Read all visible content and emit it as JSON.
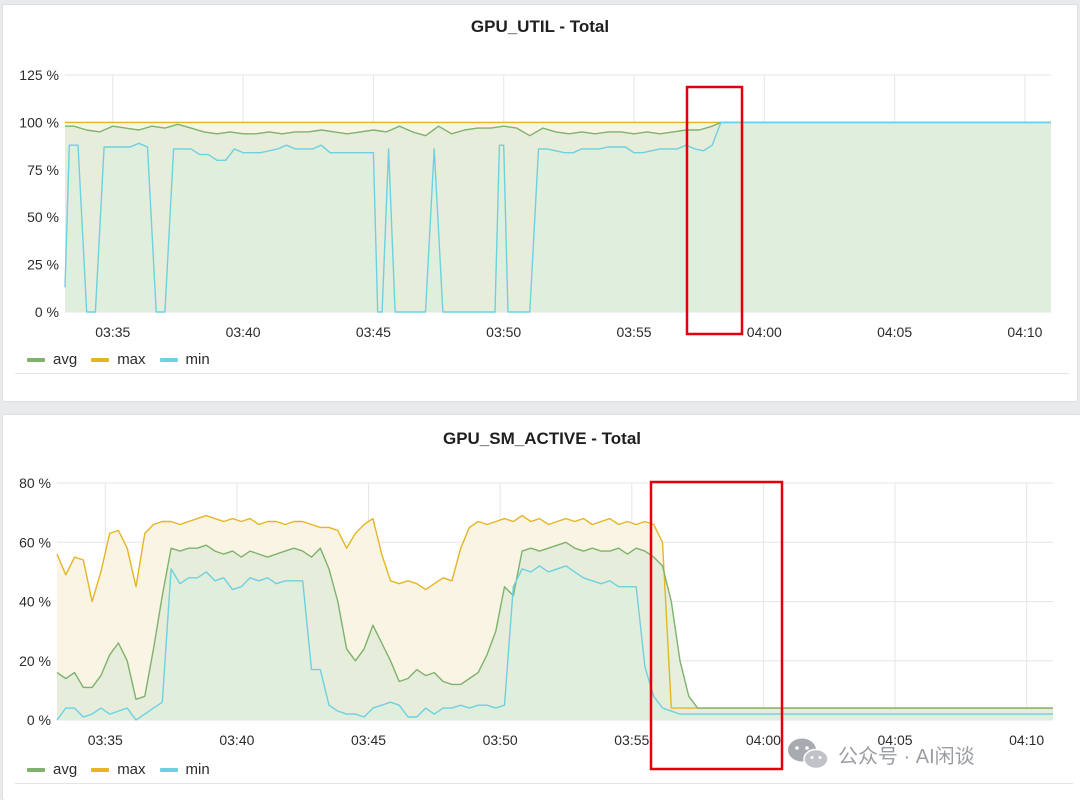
{
  "colors": {
    "avg": "#7eb26d",
    "max": "#e5b525",
    "min": "#6ed0e0",
    "highlight": "#e3000b",
    "grid": "#e6e6e6"
  },
  "panels": [
    {
      "title": "GPU_UTIL - Total",
      "legend": [
        "avg",
        "max",
        "min"
      ]
    },
    {
      "title": "GPU_SM_ACTIVE - Total",
      "legend": [
        "avg",
        "max",
        "min"
      ]
    }
  ],
  "watermark": {
    "text": "公众号 · AI闲谈",
    "icon": "wechat-icon"
  },
  "chart_data": [
    {
      "type": "area",
      "title": "GPU_UTIL - Total",
      "x_unit": "time (hh:mm)",
      "xlim": [
        "03:33:10",
        "04:11:00"
      ],
      "x_ticks": [
        "03:35",
        "03:40",
        "03:45",
        "03:50",
        "03:55",
        "04:00",
        "04:05",
        "04:10"
      ],
      "y_ticks": [
        "0 %",
        "25 %",
        "50 %",
        "75 %",
        "100 %",
        "125 %"
      ],
      "ylim": [
        0,
        125
      ],
      "grid": true,
      "legend_position": "bottom-left",
      "series": [
        {
          "name": "avg",
          "color": "#7eb26d",
          "x": [
            "03:33:10",
            "03:33:30",
            "03:34:00",
            "03:34:30",
            "03:35:00",
            "03:35:30",
            "03:36:00",
            "03:36:30",
            "03:37:00",
            "03:37:30",
            "03:38:00",
            "03:38:30",
            "03:39:00",
            "03:39:30",
            "03:40:00",
            "03:40:30",
            "03:41:00",
            "03:41:30",
            "03:42:00",
            "03:42:30",
            "03:43:00",
            "03:43:30",
            "03:44:00",
            "03:44:30",
            "03:45:00",
            "03:45:30",
            "03:46:00",
            "03:46:30",
            "03:47:00",
            "03:47:30",
            "03:48:00",
            "03:48:30",
            "03:49:00",
            "03:49:30",
            "03:50:00",
            "03:50:30",
            "03:51:00",
            "03:51:30",
            "03:52:00",
            "03:52:30",
            "03:53:00",
            "03:53:30",
            "03:54:00",
            "03:54:30",
            "03:55:00",
            "03:55:30",
            "03:56:00",
            "03:56:30",
            "03:57:00",
            "03:57:30",
            "03:58:00",
            "03:58:20",
            "04:11:00"
          ],
          "y": [
            98,
            98,
            96,
            95,
            98,
            97,
            96,
            98,
            97,
            99,
            97,
            95,
            94,
            95,
            94,
            94,
            95,
            94,
            95,
            95,
            96,
            95,
            94,
            95,
            96,
            95,
            98,
            95,
            93,
            98,
            94,
            96,
            97,
            97,
            98,
            97,
            93,
            97,
            95,
            94,
            95,
            94,
            95,
            95,
            94,
            95,
            94,
            95,
            96,
            96,
            98,
            100,
            100
          ]
        },
        {
          "name": "max",
          "color": "#e5b525",
          "x": [
            "03:33:10",
            "03:58:20",
            "04:11:00"
          ],
          "y": [
            100,
            100,
            100
          ]
        },
        {
          "name": "min",
          "color": "#6ed0e0",
          "x": [
            "03:33:10",
            "03:33:20",
            "03:33:40",
            "03:34:00",
            "03:34:20",
            "03:34:40",
            "03:35:00",
            "03:35:20",
            "03:35:40",
            "03:36:00",
            "03:36:20",
            "03:36:40",
            "03:37:00",
            "03:37:20",
            "03:37:40",
            "03:38:00",
            "03:38:20",
            "03:38:40",
            "03:39:00",
            "03:39:20",
            "03:39:40",
            "03:40:00",
            "03:40:20",
            "03:40:40",
            "03:41:00",
            "03:41:20",
            "03:41:40",
            "03:42:00",
            "03:42:20",
            "03:42:40",
            "03:43:00",
            "03:43:20",
            "03:43:40",
            "03:44:00",
            "03:44:20",
            "03:44:40",
            "03:45:00",
            "03:45:10",
            "03:45:20",
            "03:45:35",
            "03:45:50",
            "03:46:05",
            "03:46:30",
            "03:47:00",
            "03:47:20",
            "03:47:40",
            "03:48:00",
            "03:48:20",
            "03:48:40",
            "03:49:00",
            "03:49:20",
            "03:49:40",
            "03:49:50",
            "03:50:00",
            "03:50:10",
            "03:50:20",
            "03:50:40",
            "03:51:00",
            "03:51:20",
            "03:51:40",
            "03:52:00",
            "03:52:20",
            "03:52:40",
            "03:53:00",
            "03:53:20",
            "03:53:40",
            "03:54:00",
            "03:54:20",
            "03:54:40",
            "03:55:00",
            "03:55:20",
            "03:55:40",
            "03:56:00",
            "03:56:20",
            "03:56:40",
            "03:57:00",
            "03:57:20",
            "03:57:40",
            "03:58:00",
            "03:58:20",
            "04:11:00"
          ],
          "y": [
            13,
            88,
            88,
            0,
            0,
            87,
            87,
            87,
            87,
            89,
            87,
            0,
            0,
            86,
            86,
            86,
            83,
            83,
            80,
            80,
            86,
            84,
            84,
            84,
            85,
            86,
            88,
            86,
            86,
            86,
            88,
            84,
            84,
            84,
            84,
            84,
            84,
            0,
            0,
            86,
            0,
            0,
            0,
            0,
            86,
            0,
            0,
            0,
            0,
            0,
            0,
            0,
            88,
            88,
            0,
            0,
            0,
            0,
            86,
            86,
            85,
            84,
            84,
            86,
            86,
            86,
            87,
            87,
            87,
            84,
            84,
            85,
            86,
            86,
            86,
            88,
            86,
            85,
            88,
            100,
            100
          ]
        }
      ]
    },
    {
      "type": "area",
      "title": "GPU_SM_ACTIVE - Total",
      "x_unit": "time (hh:mm)",
      "xlim": [
        "03:33:10",
        "04:11:00"
      ],
      "x_ticks": [
        "03:35",
        "03:40",
        "03:45",
        "03:50",
        "03:55",
        "04:00",
        "04:05",
        "04:10"
      ],
      "y_ticks": [
        "0 %",
        "20 %",
        "40 %",
        "60 %",
        "80 %"
      ],
      "ylim": [
        0,
        80
      ],
      "grid": true,
      "legend_position": "bottom-left",
      "series": [
        {
          "name": "avg",
          "color": "#7eb26d",
          "x": [
            "03:33:10",
            "03:33:30",
            "03:33:50",
            "03:34:10",
            "03:34:30",
            "03:34:50",
            "03:35:10",
            "03:35:30",
            "03:35:50",
            "03:36:10",
            "03:36:30",
            "03:36:50",
            "03:37:10",
            "03:37:30",
            "03:37:50",
            "03:38:10",
            "03:38:30",
            "03:38:50",
            "03:39:10",
            "03:39:30",
            "03:39:50",
            "03:40:10",
            "03:40:30",
            "03:40:50",
            "03:41:10",
            "03:41:30",
            "03:41:50",
            "03:42:10",
            "03:42:30",
            "03:42:50",
            "03:43:10",
            "03:43:30",
            "03:43:50",
            "03:44:10",
            "03:44:30",
            "03:44:50",
            "03:45:10",
            "03:45:30",
            "03:45:50",
            "03:46:10",
            "03:46:30",
            "03:46:50",
            "03:47:10",
            "03:47:30",
            "03:47:50",
            "03:48:10",
            "03:48:30",
            "03:48:50",
            "03:49:10",
            "03:49:30",
            "03:49:50",
            "03:50:10",
            "03:50:30",
            "03:50:50",
            "03:51:10",
            "03:51:30",
            "03:51:50",
            "03:52:10",
            "03:52:30",
            "03:52:50",
            "03:53:10",
            "03:53:30",
            "03:53:50",
            "03:54:10",
            "03:54:30",
            "03:54:50",
            "03:55:10",
            "03:55:30",
            "03:55:50",
            "03:56:10",
            "03:56:30",
            "03:56:50",
            "03:57:10",
            "03:57:30",
            "03:57:50",
            "03:58:10",
            "03:58:30",
            "03:58:50",
            "03:59:30",
            "04:00:30",
            "04:01:00",
            "04:01:30",
            "04:11:00"
          ],
          "y": [
            16,
            14,
            16,
            11,
            11,
            15,
            22,
            26,
            20,
            7,
            8,
            24,
            42,
            58,
            57,
            58,
            58,
            59,
            57,
            56,
            57,
            55,
            57,
            56,
            55,
            56,
            57,
            58,
            57,
            55,
            58,
            51,
            40,
            24,
            20,
            24,
            32,
            26,
            20,
            13,
            14,
            17,
            15,
            16,
            13,
            12,
            12,
            14,
            16,
            22,
            30,
            45,
            42,
            57,
            58,
            57,
            58,
            59,
            60,
            58,
            57,
            58,
            57,
            57,
            58,
            56,
            58,
            57,
            55,
            52,
            40,
            20,
            8,
            4,
            4,
            4,
            4,
            4,
            4,
            4,
            4,
            4,
            4
          ]
        },
        {
          "name": "max",
          "color": "#e5b525",
          "x": [
            "03:33:10",
            "03:33:30",
            "03:33:50",
            "03:34:10",
            "03:34:30",
            "03:34:50",
            "03:35:10",
            "03:35:30",
            "03:35:50",
            "03:36:10",
            "03:36:30",
            "03:36:50",
            "03:37:10",
            "03:37:30",
            "03:37:50",
            "03:38:10",
            "03:38:30",
            "03:38:50",
            "03:39:10",
            "03:39:30",
            "03:39:50",
            "03:40:10",
            "03:40:30",
            "03:40:50",
            "03:41:10",
            "03:41:30",
            "03:41:50",
            "03:42:10",
            "03:42:30",
            "03:42:50",
            "03:43:10",
            "03:43:30",
            "03:43:50",
            "03:44:10",
            "03:44:30",
            "03:44:50",
            "03:45:10",
            "03:45:30",
            "03:45:50",
            "03:46:10",
            "03:46:30",
            "03:46:50",
            "03:47:10",
            "03:47:30",
            "03:47:50",
            "03:48:10",
            "03:48:30",
            "03:48:50",
            "03:49:10",
            "03:49:30",
            "03:49:50",
            "03:50:10",
            "03:50:30",
            "03:50:50",
            "03:51:10",
            "03:51:30",
            "03:51:50",
            "03:52:10",
            "03:52:30",
            "03:52:50",
            "03:53:10",
            "03:53:30",
            "03:53:50",
            "03:54:10",
            "03:54:30",
            "03:54:50",
            "03:55:10",
            "03:55:30",
            "03:55:50",
            "03:56:10",
            "03:56:30",
            "03:56:50",
            "03:57:10",
            "03:57:30",
            "03:57:50",
            "03:58:10",
            "03:58:30",
            "03:58:50",
            "04:11:00"
          ],
          "y": [
            56,
            49,
            55,
            54,
            40,
            50,
            63,
            64,
            58,
            45,
            63,
            66,
            67,
            67,
            66,
            67,
            68,
            69,
            68,
            67,
            68,
            67,
            68,
            66,
            67,
            67,
            66,
            67,
            67,
            66,
            65,
            65,
            64,
            58,
            63,
            66,
            68,
            56,
            47,
            46,
            47,
            46,
            44,
            46,
            48,
            47,
            58,
            65,
            67,
            66,
            67,
            68,
            67,
            69,
            67,
            68,
            66,
            67,
            68,
            67,
            68,
            66,
            67,
            68,
            66,
            67,
            66,
            67,
            66,
            60,
            4,
            4,
            4,
            4,
            4,
            4,
            4,
            4,
            4
          ]
        },
        {
          "name": "min",
          "color": "#6ed0e0",
          "x": [
            "03:33:10",
            "03:33:30",
            "03:33:50",
            "03:34:10",
            "03:34:30",
            "03:34:50",
            "03:35:10",
            "03:35:30",
            "03:35:50",
            "03:36:10",
            "03:36:30",
            "03:36:50",
            "03:37:10",
            "03:37:30",
            "03:37:50",
            "03:38:10",
            "03:38:30",
            "03:38:50",
            "03:39:10",
            "03:39:30",
            "03:39:50",
            "03:40:10",
            "03:40:30",
            "03:40:50",
            "03:41:10",
            "03:41:30",
            "03:41:50",
            "03:42:10",
            "03:42:30",
            "03:42:50",
            "03:43:10",
            "03:43:30",
            "03:43:50",
            "03:44:10",
            "03:44:30",
            "03:44:50",
            "03:45:10",
            "03:45:30",
            "03:45:50",
            "03:46:10",
            "03:46:30",
            "03:46:50",
            "03:47:10",
            "03:47:30",
            "03:47:50",
            "03:48:10",
            "03:48:30",
            "03:48:50",
            "03:49:10",
            "03:49:30",
            "03:49:50",
            "03:50:10",
            "03:50:30",
            "03:50:50",
            "03:51:10",
            "03:51:30",
            "03:51:50",
            "03:52:10",
            "03:52:30",
            "03:52:50",
            "03:53:10",
            "03:53:30",
            "03:53:50",
            "03:54:10",
            "03:54:30",
            "03:54:50",
            "03:55:10",
            "03:55:30",
            "03:55:50",
            "03:56:10",
            "03:56:30",
            "03:56:50",
            "03:57:10",
            "03:57:30",
            "03:57:50",
            "03:58:10",
            "03:58:30",
            "04:11:00"
          ],
          "y": [
            0,
            4,
            4,
            1,
            2,
            4,
            2,
            3,
            4,
            0,
            2,
            4,
            6,
            51,
            46,
            48,
            48,
            50,
            47,
            48,
            44,
            45,
            48,
            47,
            48,
            46,
            47,
            47,
            47,
            17,
            17,
            5,
            3,
            2,
            2,
            1,
            4,
            5,
            6,
            5,
            1,
            1,
            4,
            2,
            4,
            4,
            5,
            4,
            5,
            5,
            4,
            5,
            45,
            51,
            50,
            52,
            50,
            51,
            52,
            50,
            48,
            47,
            46,
            47,
            45,
            45,
            45,
            18,
            8,
            4,
            3,
            2,
            2,
            2,
            2,
            2,
            2,
            2
          ]
        }
      ]
    }
  ]
}
